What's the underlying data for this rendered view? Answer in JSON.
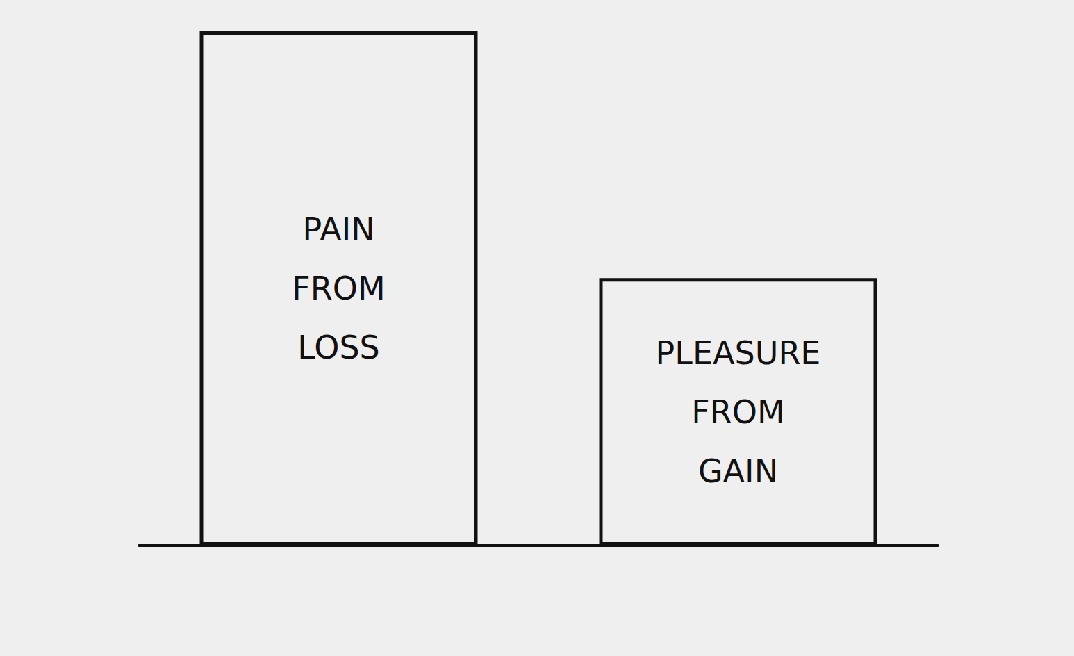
{
  "chart_data": {
    "type": "bar",
    "categories": [
      "PAIN FROM LOSS",
      "PLEASURE FROM GAIN"
    ],
    "values": [
      100,
      52
    ],
    "color": "#111111",
    "ylim": [
      0,
      100
    ],
    "tick_labels": false,
    "grid": false
  }
}
